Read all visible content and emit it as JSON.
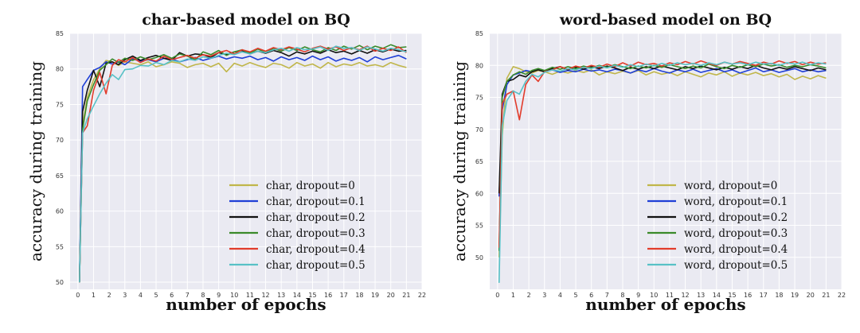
{
  "chart_data": [
    {
      "type": "line",
      "title": "char-based model on BQ",
      "xlabel": "number of epochs",
      "ylabel": "accuracy during training",
      "xlim": [
        -0.5,
        22
      ],
      "ylim": [
        49,
        85
      ],
      "xticks": [
        0,
        1,
        2,
        3,
        4,
        5,
        6,
        7,
        8,
        9,
        10,
        11,
        12,
        13,
        14,
        15,
        16,
        17,
        18,
        19,
        20,
        21,
        22
      ],
      "yticks": [
        50,
        55,
        60,
        65,
        70,
        75,
        80,
        85
      ],
      "grid": true,
      "legend_position": "lower-right",
      "x": [
        0.1,
        0.3,
        0.6,
        1,
        1.4,
        1.8,
        2.2,
        2.6,
        3,
        3.5,
        4,
        4.5,
        5,
        5.5,
        6,
        6.5,
        7,
        7.5,
        8,
        8.5,
        9,
        9.5,
        10,
        10.5,
        11,
        11.5,
        12,
        12.5,
        13,
        13.5,
        14,
        14.5,
        15,
        15.5,
        16,
        16.5,
        17,
        17.5,
        18,
        18.5,
        19,
        19.5,
        20,
        20.5,
        21
      ],
      "series": [
        {
          "name": "char, dropout=0",
          "color": "#c0b64a",
          "values": [
            50,
            72,
            76,
            78.5,
            80,
            81.2,
            81,
            80.5,
            81,
            80.8,
            80.6,
            81,
            80.3,
            80.6,
            81,
            80.8,
            80.2,
            80.6,
            80.8,
            80.3,
            80.8,
            79.6,
            80.8,
            80.4,
            80.9,
            80.5,
            80.2,
            80.8,
            80.6,
            80.1,
            80.9,
            80.4,
            80.7,
            80.1,
            80.9,
            80.3,
            80.7,
            80.5,
            80.9,
            80.4,
            80.6,
            80.3,
            80.9,
            80.5,
            80.2
          ]
        },
        {
          "name": "char, dropout=0.1",
          "color": "#1f3fd6",
          "values": [
            50,
            77.5,
            78.5,
            79.8,
            80.2,
            81,
            80.7,
            81,
            80.6,
            81.4,
            81.1,
            81.3,
            81,
            81.5,
            81.4,
            81,
            81.3,
            81.6,
            81.2,
            81.5,
            81.8,
            81.4,
            81.7,
            81.5,
            81.8,
            81.3,
            81.6,
            81.1,
            81.7,
            81.3,
            81.6,
            81.2,
            81.8,
            81.3,
            81.7,
            81.1,
            81.5,
            81.2,
            81.6,
            81,
            81.7,
            81.3,
            81.6,
            81.9,
            81.4
          ]
        },
        {
          "name": "char, dropout=0.2",
          "color": "#111111",
          "values": [
            50,
            74,
            77,
            79.8,
            77.5,
            80.8,
            81,
            80.6,
            81.3,
            81.8,
            81.2,
            81.6,
            81.9,
            81.5,
            81.2,
            82.3,
            81.8,
            82.1,
            82,
            81.6,
            82.3,
            82,
            82.4,
            82.6,
            82.1,
            82.5,
            82.2,
            82.6,
            82.3,
            81.8,
            82.4,
            82.1,
            82.5,
            82.2,
            82.7,
            82.3,
            82.5,
            82.1,
            82.6,
            82.2,
            82.7,
            82.4,
            82.8,
            82.5,
            82.6
          ]
        },
        {
          "name": "char, dropout=0.3",
          "color": "#3a8a2a",
          "values": [
            50,
            71.5,
            75.5,
            77.8,
            79.8,
            80.6,
            81.4,
            80.9,
            81.5,
            81.2,
            81.7,
            81.3,
            81.6,
            82,
            81.5,
            82.1,
            81.8,
            81.3,
            82.4,
            82,
            82.6,
            81.9,
            82.4,
            82.7,
            82.2,
            82.8,
            82.3,
            82.9,
            82.5,
            83,
            82.6,
            83.1,
            82.7,
            82.4,
            83,
            82.6,
            83.2,
            82.8,
            83.3,
            82.7,
            83.2,
            82.9,
            83.4,
            83,
            83.1
          ]
        },
        {
          "name": "char, dropout=0.4",
          "color": "#e23c2b",
          "values": [
            50,
            71,
            72,
            77,
            79.5,
            76.5,
            80.5,
            81.3,
            81,
            81.6,
            80.9,
            81.4,
            81.1,
            81.8,
            81.3,
            81.6,
            81.9,
            81.5,
            82,
            81.8,
            82.3,
            82.6,
            82.1,
            82.7,
            82.4,
            82.9,
            82.5,
            83,
            82.7,
            83.1,
            82.8,
            82.4,
            82.9,
            83.2,
            82.8,
            83.1,
            82.6,
            83,
            82.7,
            83.2,
            82.5,
            82.9,
            82.6,
            83.1,
            82.3
          ]
        },
        {
          "name": "char, dropout=0.5",
          "color": "#58c1c6",
          "values": [
            50,
            71,
            73,
            74.8,
            76.5,
            78,
            79.2,
            78.5,
            79.9,
            80,
            80.5,
            80.4,
            80.9,
            80.6,
            81.2,
            81,
            81.4,
            81.2,
            81.7,
            81.5,
            81.9,
            82.2,
            82,
            82.4,
            82.1,
            82.5,
            82.3,
            82.7,
            82.9,
            82.5,
            83,
            82.7,
            82.8,
            83.1,
            82.6,
            83.2,
            82.9,
            83,
            82.6,
            83.1,
            82.8,
            82.5,
            82.9,
            82.7,
            82.4
          ]
        }
      ]
    },
    {
      "type": "line",
      "title": "word-based model on BQ",
      "xlabel": "number of epochs",
      "ylabel": "accuracy during training",
      "xlim": [
        -0.5,
        22
      ],
      "ylim": [
        45,
        85
      ],
      "xticks": [
        0,
        1,
        2,
        3,
        4,
        5,
        6,
        7,
        8,
        9,
        10,
        11,
        12,
        13,
        14,
        15,
        16,
        17,
        18,
        19,
        20,
        21,
        22
      ],
      "yticks": [
        50,
        55,
        60,
        65,
        70,
        75,
        80,
        85
      ],
      "grid": true,
      "legend_position": "lower-right",
      "x": [
        0.1,
        0.3,
        0.6,
        1,
        1.4,
        1.8,
        2.2,
        2.6,
        3,
        3.5,
        4,
        4.5,
        5,
        5.5,
        6,
        6.5,
        7,
        7.5,
        8,
        8.5,
        9,
        9.5,
        10,
        10.5,
        11,
        11.5,
        12,
        12.5,
        13,
        13.5,
        14,
        14.5,
        15,
        15.5,
        16,
        16.5,
        17,
        17.5,
        18,
        18.5,
        19,
        19.5,
        20,
        20.5,
        21
      ],
      "series": [
        {
          "name": "word, dropout=0",
          "color": "#c0b64a",
          "values": [
            50,
            69,
            78,
            79.8,
            79.5,
            79,
            78.8,
            79.2,
            79,
            78.6,
            79.1,
            78.8,
            79.2,
            78.9,
            79.3,
            78.5,
            79,
            78.7,
            79.1,
            78.8,
            79.2,
            78.5,
            79,
            78.6,
            78.9,
            78.4,
            79,
            78.6,
            78.2,
            78.8,
            78.5,
            79,
            78.3,
            78.8,
            78.5,
            78.9,
            78.4,
            78.7,
            78.2,
            78.6,
            77.8,
            78.3,
            77.9,
            78.4,
            78
          ]
        },
        {
          "name": "word, dropout=0.1",
          "color": "#1f3fd6",
          "values": [
            59.5,
            73,
            77,
            78.5,
            78.8,
            79.2,
            79,
            79.4,
            79.1,
            79.3,
            78.9,
            79.2,
            79,
            79.4,
            79.1,
            79.3,
            79,
            79.4,
            79.2,
            78.8,
            79.3,
            79,
            79.5,
            79.1,
            78.8,
            79.3,
            79,
            79.4,
            78.9,
            79.2,
            79.5,
            79,
            79.3,
            78.8,
            79.2,
            79.6,
            79,
            79.3,
            78.9,
            79.2,
            79.5,
            79,
            79.3,
            79,
            79.2
          ]
        },
        {
          "name": "word, dropout=0.2",
          "color": "#111111",
          "values": [
            60,
            75.5,
            77.5,
            77.8,
            78.5,
            78.2,
            79,
            79.3,
            79,
            79.5,
            79.8,
            79.3,
            79.7,
            79.4,
            79.8,
            79.5,
            79.9,
            79.6,
            79.2,
            79.7,
            79.4,
            79.8,
            79.5,
            79.9,
            79.6,
            79.3,
            79.8,
            79.5,
            79.9,
            79.6,
            79.3,
            79.7,
            79.4,
            79.8,
            79.5,
            80,
            79.6,
            79.3,
            79.7,
            79.4,
            79.8,
            79.5,
            79.2,
            79.6,
            79.3
          ]
        },
        {
          "name": "word, dropout=0.3",
          "color": "#3a8a2a",
          "values": [
            51,
            75,
            77.5,
            78.5,
            79,
            78.6,
            79.2,
            79.5,
            79.2,
            79.7,
            79.4,
            79.8,
            79.5,
            79.9,
            79.6,
            80,
            79.7,
            80.1,
            79.8,
            79.5,
            79.9,
            79.6,
            80,
            79.7,
            80.1,
            79.8,
            79.5,
            79.9,
            79.6,
            80.2,
            79.8,
            79.5,
            80,
            79.7,
            80.1,
            79.8,
            80.2,
            79.9,
            80.1,
            79.7,
            80,
            79.8,
            80.1,
            79.9,
            79.6
          ]
        },
        {
          "name": "word, dropout=0.4",
          "color": "#e23c2b",
          "values": [
            51.5,
            74,
            75.5,
            76,
            71.5,
            77,
            78.5,
            77.5,
            79,
            79.3,
            79.8,
            79.4,
            79.9,
            79.6,
            80,
            79.7,
            80.2,
            79.8,
            80.4,
            79.9,
            80.5,
            80.1,
            80.3,
            79.9,
            80.4,
            80.1,
            80.6,
            80.2,
            80.7,
            80.3,
            80,
            80.5,
            80.2,
            80.6,
            80.3,
            80,
            80.5,
            80.2,
            80.7,
            80.3,
            80.6,
            80.1,
            80.5,
            80.2,
            80.4
          ]
        },
        {
          "name": "word, dropout=0.5",
          "color": "#58c1c6",
          "values": [
            46,
            70.5,
            74.5,
            76,
            75.5,
            77.5,
            78.6,
            78.2,
            78.9,
            79.3,
            79.1,
            79.5,
            79.3,
            79.7,
            79.5,
            79.9,
            79.6,
            80,
            79.7,
            80.1,
            79.8,
            80.2,
            79.9,
            80.3,
            80,
            80.4,
            80.1,
            80.3,
            80,
            80.4,
            80.1,
            80.5,
            80.2,
            80.4,
            80.1,
            80.5,
            80.2,
            80.3,
            80,
            80.4,
            80.2,
            80.5,
            80.1,
            80.4,
            80.2
          ]
        }
      ]
    }
  ]
}
